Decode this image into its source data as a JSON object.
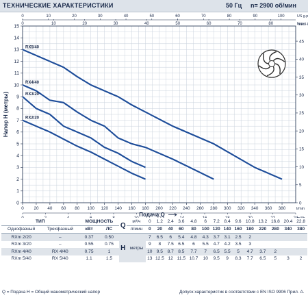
{
  "header": {
    "title": "ТЕХНИЧЕСКИЕ ХАРАКТЕРИСТИКИ",
    "frequency": "50 Гц",
    "speed": "n= 2900 об/мин"
  },
  "chart_data": {
    "type": "line",
    "ylabel": "Напор H (метры)",
    "xlabel": "Подача Q",
    "xlim": [
      0,
      400
    ],
    "ylim": [
      0,
      15
    ],
    "x_ticks": [
      0,
      20,
      40,
      60,
      80,
      100,
      120,
      140,
      160,
      180,
      200,
      220,
      240,
      260,
      280,
      300,
      320,
      340,
      360,
      380
    ],
    "x_unit": "l/min",
    "y_ticks": [
      0,
      1,
      2,
      3,
      4,
      5,
      6,
      7,
      8,
      9,
      10,
      11,
      12,
      13,
      14,
      15
    ],
    "top_axis_usgpm": {
      "unit_top": "US g.p.m.",
      "unit_bottom": "Imp g.p.m.",
      "ticks": [
        0,
        10,
        20,
        30,
        40,
        50,
        60,
        70,
        80,
        90,
        100
      ]
    },
    "top_axis_impgpm": {
      "ticks": [
        0,
        10,
        20,
        30,
        40,
        50,
        60,
        70,
        80
      ]
    },
    "right_axis_feet": {
      "unit": "feet",
      "ticks": [
        0,
        5,
        10,
        15,
        20,
        25,
        30,
        35,
        40,
        45
      ]
    },
    "bottom_axis_m3h": {
      "unit": "m³/h",
      "ticks": [
        0,
        2,
        4,
        6,
        8,
        10,
        12,
        14,
        16,
        18,
        20,
        22,
        24
      ]
    },
    "grid": true,
    "series": [
      {
        "name": "RX5/40",
        "x": [
          0,
          20,
          40,
          60,
          80,
          100,
          120,
          140,
          160,
          180,
          220,
          280,
          340,
          380
        ],
        "y": [
          13,
          12.5,
          12,
          11.5,
          10.7,
          10,
          9.5,
          9,
          8.3,
          7.7,
          6.5,
          5,
          3,
          2
        ]
      },
      {
        "name": "RX4/40",
        "x": [
          0,
          20,
          40,
          60,
          80,
          100,
          120,
          140,
          160,
          180,
          220,
          280
        ],
        "y": [
          10,
          9.5,
          8.7,
          8.5,
          7.7,
          7,
          6.5,
          5.5,
          5,
          4.7,
          3.7,
          2
        ]
      },
      {
        "name": "RX3/20",
        "x": [
          0,
          20,
          40,
          60,
          80,
          100,
          120,
          140,
          160,
          180
        ],
        "y": [
          9,
          8,
          7.5,
          6.5,
          6,
          5.5,
          4.7,
          4.2,
          3.5,
          3
        ]
      },
      {
        "name": "RX2/20",
        "x": [
          0,
          20,
          40,
          60,
          80,
          100,
          120,
          140,
          160,
          180
        ],
        "y": [
          7,
          6.5,
          6,
          5.4,
          4.8,
          4.3,
          3.7,
          3.1,
          2.5,
          2
        ]
      }
    ]
  },
  "table": {
    "tip_label": "ТИП",
    "power_label": "МОЩНОСТЬ",
    "single_phase": "Однофазный",
    "three_phase": "Трехфазный",
    "kw": "кВт",
    "hp": "ЛС",
    "q_symbol": "Q",
    "h_symbol": "H",
    "h_unit": "метры",
    "m3h": "м³/ч",
    "lmin": "л/мин",
    "q_m3h": [
      "0",
      "1.2",
      "2.4",
      "3.6",
      "4.8",
      "6",
      "7.2",
      "8.4",
      "9.6",
      "10.8",
      "13.2",
      "16.8",
      "20.4",
      "22.8"
    ],
    "q_lmin": [
      "0",
      "20",
      "40",
      "60",
      "80",
      "100",
      "120",
      "140",
      "160",
      "180",
      "220",
      "280",
      "340",
      "380"
    ],
    "rows": [
      {
        "single": "RXm 2/20",
        "three": "–",
        "kw": "0.37",
        "hp": "0.50",
        "h": [
          "7",
          "6.5",
          "6",
          "5.4",
          "4.8",
          "4.3",
          "3.7",
          "3.1",
          "2.5",
          "2",
          "",
          "",
          "",
          ""
        ]
      },
      {
        "single": "RXm 3/20",
        "three": "–",
        "kw": "0.55",
        "hp": "0.75",
        "h": [
          "9",
          "8",
          "7.5",
          "6.5",
          "6",
          "5.5",
          "4.7",
          "4.2",
          "3.5",
          "3",
          "",
          "",
          "",
          ""
        ]
      },
      {
        "single": "RXm 4/40",
        "three": "RX 4/40",
        "kw": "0.75",
        "hp": "1",
        "h": [
          "10",
          "9.5",
          "8.7",
          "8.5",
          "7.7",
          "7",
          "6.5",
          "5.5",
          "5",
          "4.7",
          "3.7",
          "2",
          "",
          ""
        ]
      },
      {
        "single": "RXm 5/40",
        "three": "RX 5/40",
        "kw": "1.1",
        "hp": "1.5",
        "h": [
          "13",
          "12.5",
          "12",
          "11.5",
          "10.7",
          "10",
          "9.5",
          "9",
          "8.3",
          "7.7",
          "6.5",
          "5",
          "3",
          "2"
        ]
      }
    ]
  },
  "footer": {
    "left": "Q = Подача  H = Общий манометрический напор",
    "right": "Допуск характеристик в соответствии с EN ISO 9906 Прил. A."
  },
  "colors": {
    "curve": "#1f4e9a",
    "grid": "#c9d2dc",
    "axis": "#1a2a4a",
    "header_bg": "#dde3ea"
  },
  "icon": "impeller-icon"
}
